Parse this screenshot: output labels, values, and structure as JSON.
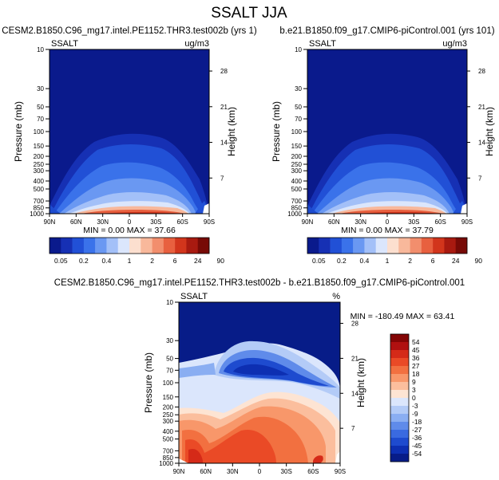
{
  "title": "SSALT JJA",
  "chart_data": [
    {
      "type": "heatmap",
      "panel": "left",
      "title": "CESM2.B1850.C96_mg17.intel.PE1152.THR3.test002b (yrs 1)",
      "variable": "SSALT",
      "units": "ug/m3",
      "xlabel": "",
      "ylabel": "Pressure (mb)",
      "y2label": "Height (km)",
      "x_ticks": [
        "90N",
        "60N",
        "30N",
        "0",
        "30S",
        "60S",
        "90S"
      ],
      "y_ticks": [
        "10",
        "30",
        "50",
        "70",
        "100",
        "150",
        "200",
        "250",
        "300",
        "400",
        "500",
        "700",
        "850",
        "1000"
      ],
      "y2_ticks": [
        "28",
        "21",
        "14",
        "7"
      ],
      "stats_label": "MIN =   0.00  MAX =  37.66",
      "min": 0.0,
      "max": 37.66,
      "colorbar_labels": [
        "0.05",
        "0.2",
        "0.4",
        "1",
        "2",
        "6",
        "24",
        "90"
      ]
    },
    {
      "type": "heatmap",
      "panel": "right",
      "title": "b.e21.B1850.f09_g17.CMIP6-piControl.001 (yrs 101)",
      "variable": "SSALT",
      "units": "ug/m3",
      "xlabel": "",
      "ylabel": "Pressure (mb)",
      "y2label": "Height (km)",
      "x_ticks": [
        "90N",
        "60N",
        "30N",
        "0",
        "30S",
        "60S",
        "90S"
      ],
      "y_ticks": [
        "10",
        "30",
        "50",
        "70",
        "100",
        "150",
        "200",
        "250",
        "300",
        "400",
        "500",
        "700",
        "850",
        "1000"
      ],
      "y2_ticks": [
        "28",
        "21",
        "14",
        "7"
      ],
      "stats_label": "MIN =   0.00  MAX =  37.79",
      "min": 0.0,
      "max": 37.79,
      "colorbar_labels": [
        "0.05",
        "0.2",
        "0.4",
        "1",
        "2",
        "6",
        "24",
        "90"
      ]
    },
    {
      "type": "heatmap",
      "panel": "difference",
      "title": "CESM2.B1850.C96_mg17.intel.PE1152.THR3.test002b - b.e21.B1850.f09_g17.CMIP6-piControl.001",
      "variable": "SSALT",
      "units": "%",
      "xlabel": "",
      "ylabel": "Pressure (mb)",
      "y2label": "Height (km)",
      "x_ticks": [
        "90N",
        "60N",
        "30N",
        "0",
        "30S",
        "60S",
        "90S"
      ],
      "y_ticks": [
        "10",
        "30",
        "50",
        "70",
        "100",
        "150",
        "200",
        "250",
        "300",
        "400",
        "500",
        "700",
        "850",
        "1000"
      ],
      "y2_ticks": [
        "28",
        "21",
        "14",
        "7"
      ],
      "stats_label": "MIN = -180.49  MAX =  63.41",
      "min": -180.49,
      "max": 63.41,
      "colorbar_labels": [
        "54",
        "45",
        "36",
        "27",
        "18",
        "9",
        "3",
        "0",
        "-3",
        "-9",
        "-18",
        "-27",
        "-36",
        "-45",
        "-54"
      ]
    }
  ],
  "colors": {
    "seq": [
      "#0a1a8c",
      "#1630b4",
      "#2150d6",
      "#3a72ea",
      "#6a98f2",
      "#a3c0f8",
      "#dbe6fc",
      "#fcdfcf",
      "#f8b89b",
      "#f28e6d",
      "#e8603f",
      "#d2351c",
      "#a81a10",
      "#770a06"
    ],
    "div": [
      "#830505",
      "#b01010",
      "#d52a18",
      "#ea4a26",
      "#f27040",
      "#f8976a",
      "#fbbe9d",
      "#fde4d3",
      "#dbe6fc",
      "#b3cbf7",
      "#8aaef2",
      "#5f8bea",
      "#3a6ae0",
      "#1e4bcf",
      "#0d2fb2",
      "#071c88"
    ]
  }
}
